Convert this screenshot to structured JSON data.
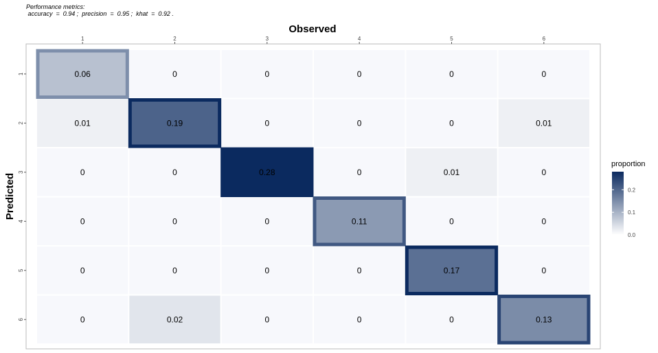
{
  "metrics": {
    "heading": "Performance metrics:",
    "line": "accuracy  =  0.94 ;  precision  =  0.95 ;  khat  =  0.92 ."
  },
  "chart_data": {
    "type": "heatmap",
    "title": "",
    "xlabel": "Observed",
    "ylabel": "Predicted",
    "x_categories": [
      "1",
      "2",
      "3",
      "4",
      "5",
      "6"
    ],
    "y_categories": [
      "1",
      "2",
      "3",
      "4",
      "5",
      "6"
    ],
    "values": [
      [
        0.06,
        0,
        0,
        0,
        0,
        0
      ],
      [
        0.01,
        0.19,
        0,
        0,
        0,
        0.01
      ],
      [
        0,
        0,
        0.28,
        0,
        0.01,
        0
      ],
      [
        0,
        0,
        0,
        0.11,
        0,
        0
      ],
      [
        0,
        0,
        0,
        0,
        0.17,
        0
      ],
      [
        0,
        0.02,
        0,
        0,
        0,
        0.13
      ]
    ],
    "legend": {
      "title": "proportion",
      "ticks": [
        "0.0",
        "0.1",
        "0.2"
      ],
      "range": [
        0,
        0.28
      ],
      "low_color": "#ffffff",
      "high_color": "#0b2a5f",
      "placement": "right"
    },
    "diagonal_highlight": true
  }
}
